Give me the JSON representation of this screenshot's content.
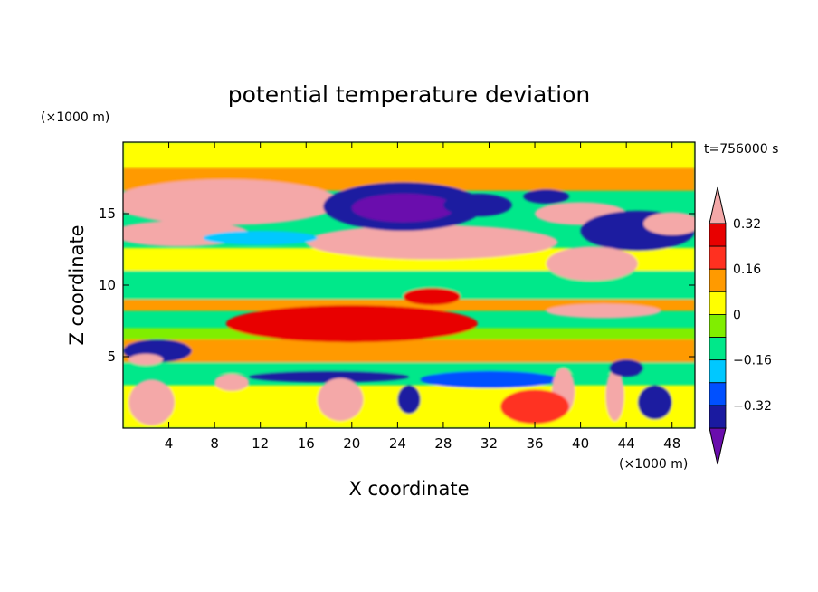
{
  "chart_data": {
    "type": "heatmap",
    "title": "potential temperature deviation",
    "xlabel": "X coordinate",
    "ylabel": "Z coordinate",
    "x_unit": "(×1000 m)",
    "y_unit": "(×1000 m)",
    "time_label": "t=756000 s",
    "xlim": [
      0,
      50
    ],
    "ylim": [
      0,
      20
    ],
    "x_ticks": [
      4,
      8,
      12,
      16,
      20,
      24,
      28,
      32,
      36,
      40,
      44,
      48
    ],
    "y_ticks": [
      5,
      10,
      15
    ],
    "colorbar": {
      "levels": [
        -0.4,
        -0.32,
        -0.24,
        -0.16,
        -0.08,
        0,
        0.08,
        0.16,
        0.24,
        0.32,
        0.4
      ],
      "tick_labels": [
        {
          "value": 0.32,
          "label": "0.32"
        },
        {
          "value": 0.16,
          "label": "0.16"
        },
        {
          "value": 0,
          "label": "0"
        },
        {
          "value": -0.16,
          "label": "−0.16"
        },
        {
          "value": -0.32,
          "label": "−0.32"
        }
      ],
      "colors": [
        "#6a0dad",
        "#1a1aa0",
        "#0050ff",
        "#00c8ff",
        "#00e88a",
        "#80ee00",
        "#ffff00",
        "#ff9a00",
        "#ff3020",
        "#e80000",
        "#f4a8a8"
      ],
      "extend": "both"
    },
    "features": [
      {
        "kind": "ellipse",
        "x": 9,
        "z": 15.8,
        "rx": 10,
        "ry": 1.6,
        "value": 0.36
      },
      {
        "kind": "ellipse",
        "x": 8.5,
        "z": 16,
        "rx": 6,
        "ry": 0.8,
        "value": 0.45
      },
      {
        "kind": "ellipse",
        "x": 5,
        "z": 13.6,
        "rx": 6,
        "ry": 0.9,
        "value": 0.33
      },
      {
        "kind": "ellipse",
        "x": 27,
        "z": 13,
        "rx": 11,
        "ry": 1.2,
        "value": 0.33
      },
      {
        "kind": "ellipse",
        "x": 27,
        "z": 13.2,
        "rx": 8,
        "ry": 0.6,
        "value": 0.45
      },
      {
        "kind": "ellipse",
        "x": 24.5,
        "z": 15.5,
        "rx": 7,
        "ry": 1.7,
        "value": -0.35
      },
      {
        "kind": "ellipse",
        "x": 24.5,
        "z": 15.4,
        "rx": 4.5,
        "ry": 1,
        "value": -0.45
      },
      {
        "kind": "ellipse",
        "x": 31,
        "z": 15.6,
        "rx": 3,
        "ry": 0.8,
        "value": -0.33
      },
      {
        "kind": "ellipse",
        "x": 37,
        "z": 16.2,
        "rx": 2,
        "ry": 0.5,
        "value": -0.35
      },
      {
        "kind": "ellipse",
        "x": 40,
        "z": 15,
        "rx": 4,
        "ry": 0.8,
        "value": 0.35
      },
      {
        "kind": "ellipse",
        "x": 40,
        "z": 15,
        "rx": 2,
        "ry": 0.3,
        "value": 0.45
      },
      {
        "kind": "ellipse",
        "x": 45,
        "z": 13.8,
        "rx": 5,
        "ry": 1.4,
        "value": -0.35
      },
      {
        "kind": "ellipse",
        "x": 41,
        "z": 11.5,
        "rx": 4,
        "ry": 1.2,
        "value": 0.33
      },
      {
        "kind": "ellipse",
        "x": 48,
        "z": 14.3,
        "rx": 2.5,
        "ry": 0.8,
        "value": 0.36
      },
      {
        "kind": "ellipse",
        "x": 12,
        "z": 13.3,
        "rx": 5,
        "ry": 0.5,
        "value": -0.2
      },
      {
        "kind": "ellipse",
        "x": 27,
        "z": 9.2,
        "rx": 2.5,
        "ry": 0.6,
        "value": 0.3
      },
      {
        "kind": "ellipse",
        "x": 20,
        "z": 7.2,
        "rx": 10,
        "ry": 0.7,
        "value": 0.45
      },
      {
        "kind": "ellipse",
        "x": 20,
        "z": 7.3,
        "rx": 11,
        "ry": 1.3,
        "value": 0.3
      },
      {
        "kind": "ellipse",
        "x": 42,
        "z": 8.2,
        "rx": 5,
        "ry": 0.5,
        "value": 0.38
      },
      {
        "kind": "ellipse",
        "x": 3,
        "z": 5.4,
        "rx": 3,
        "ry": 0.8,
        "value": -0.36
      },
      {
        "kind": "ellipse",
        "x": 2,
        "z": 4.8,
        "rx": 1.5,
        "ry": 0.4,
        "value": 0.42
      },
      {
        "kind": "ellipse",
        "x": 18,
        "z": 3.6,
        "rx": 7,
        "ry": 0.4,
        "value": -0.36
      },
      {
        "kind": "ellipse",
        "x": 32,
        "z": 3.4,
        "rx": 6,
        "ry": 0.6,
        "value": -0.25
      },
      {
        "kind": "ellipse",
        "x": 2.5,
        "z": 1.8,
        "rx": 2,
        "ry": 1.6,
        "value": 0.35
      },
      {
        "kind": "ellipse",
        "x": 19,
        "z": 2,
        "rx": 2,
        "ry": 1.5,
        "value": 0.35
      },
      {
        "kind": "ellipse",
        "x": 9.5,
        "z": 3.2,
        "rx": 1.5,
        "ry": 0.6,
        "value": 0.42
      },
      {
        "kind": "ellipse",
        "x": 25,
        "z": 2,
        "rx": 1,
        "ry": 1,
        "value": -0.4
      },
      {
        "kind": "ellipse",
        "x": 38.5,
        "z": 2.6,
        "rx": 1,
        "ry": 1.6,
        "value": 0.38
      },
      {
        "kind": "ellipse",
        "x": 43,
        "z": 2.3,
        "rx": 0.8,
        "ry": 1.8,
        "value": 0.34
      },
      {
        "kind": "ellipse",
        "x": 46.5,
        "z": 1.8,
        "rx": 1.5,
        "ry": 1.2,
        "value": -0.4
      },
      {
        "kind": "ellipse",
        "x": 44,
        "z": 4.2,
        "rx": 1.5,
        "ry": 0.6,
        "value": -0.33
      },
      {
        "kind": "ellipse",
        "x": 36,
        "z": 1.5,
        "rx": 3,
        "ry": 1.2,
        "value": 0.2
      }
    ]
  }
}
